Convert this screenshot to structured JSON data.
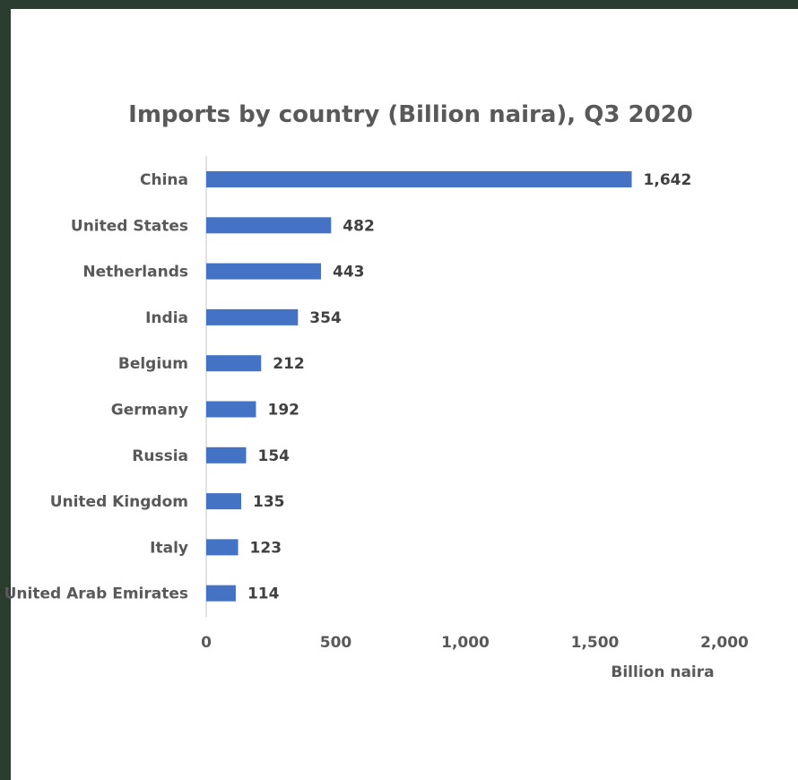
{
  "chart_data": {
    "type": "bar",
    "orientation": "horizontal",
    "title": "Imports by country (Billion naira), Q3 2020",
    "xlabel": "Billion naira",
    "ylabel": "",
    "categories": [
      "China",
      "United States",
      "Netherlands",
      "India",
      "Belgium",
      "Germany",
      "Russia",
      "United Kingdom",
      "Italy",
      "United Arab Emirates"
    ],
    "values": [
      1642,
      482,
      443,
      354,
      212,
      192,
      154,
      135,
      123,
      114
    ],
    "data_labels": [
      "1,642",
      "482",
      "443",
      "354",
      "212",
      "192",
      "154",
      "135",
      "123",
      "114"
    ],
    "xlim": [
      0,
      2000
    ],
    "xticks": [
      0,
      500,
      1000,
      1500,
      2000
    ],
    "xtick_labels": [
      "0",
      "500",
      "1,000",
      "1,500",
      "2,000"
    ],
    "bar_color": "#4472c4",
    "grid": false,
    "legend": "none"
  }
}
